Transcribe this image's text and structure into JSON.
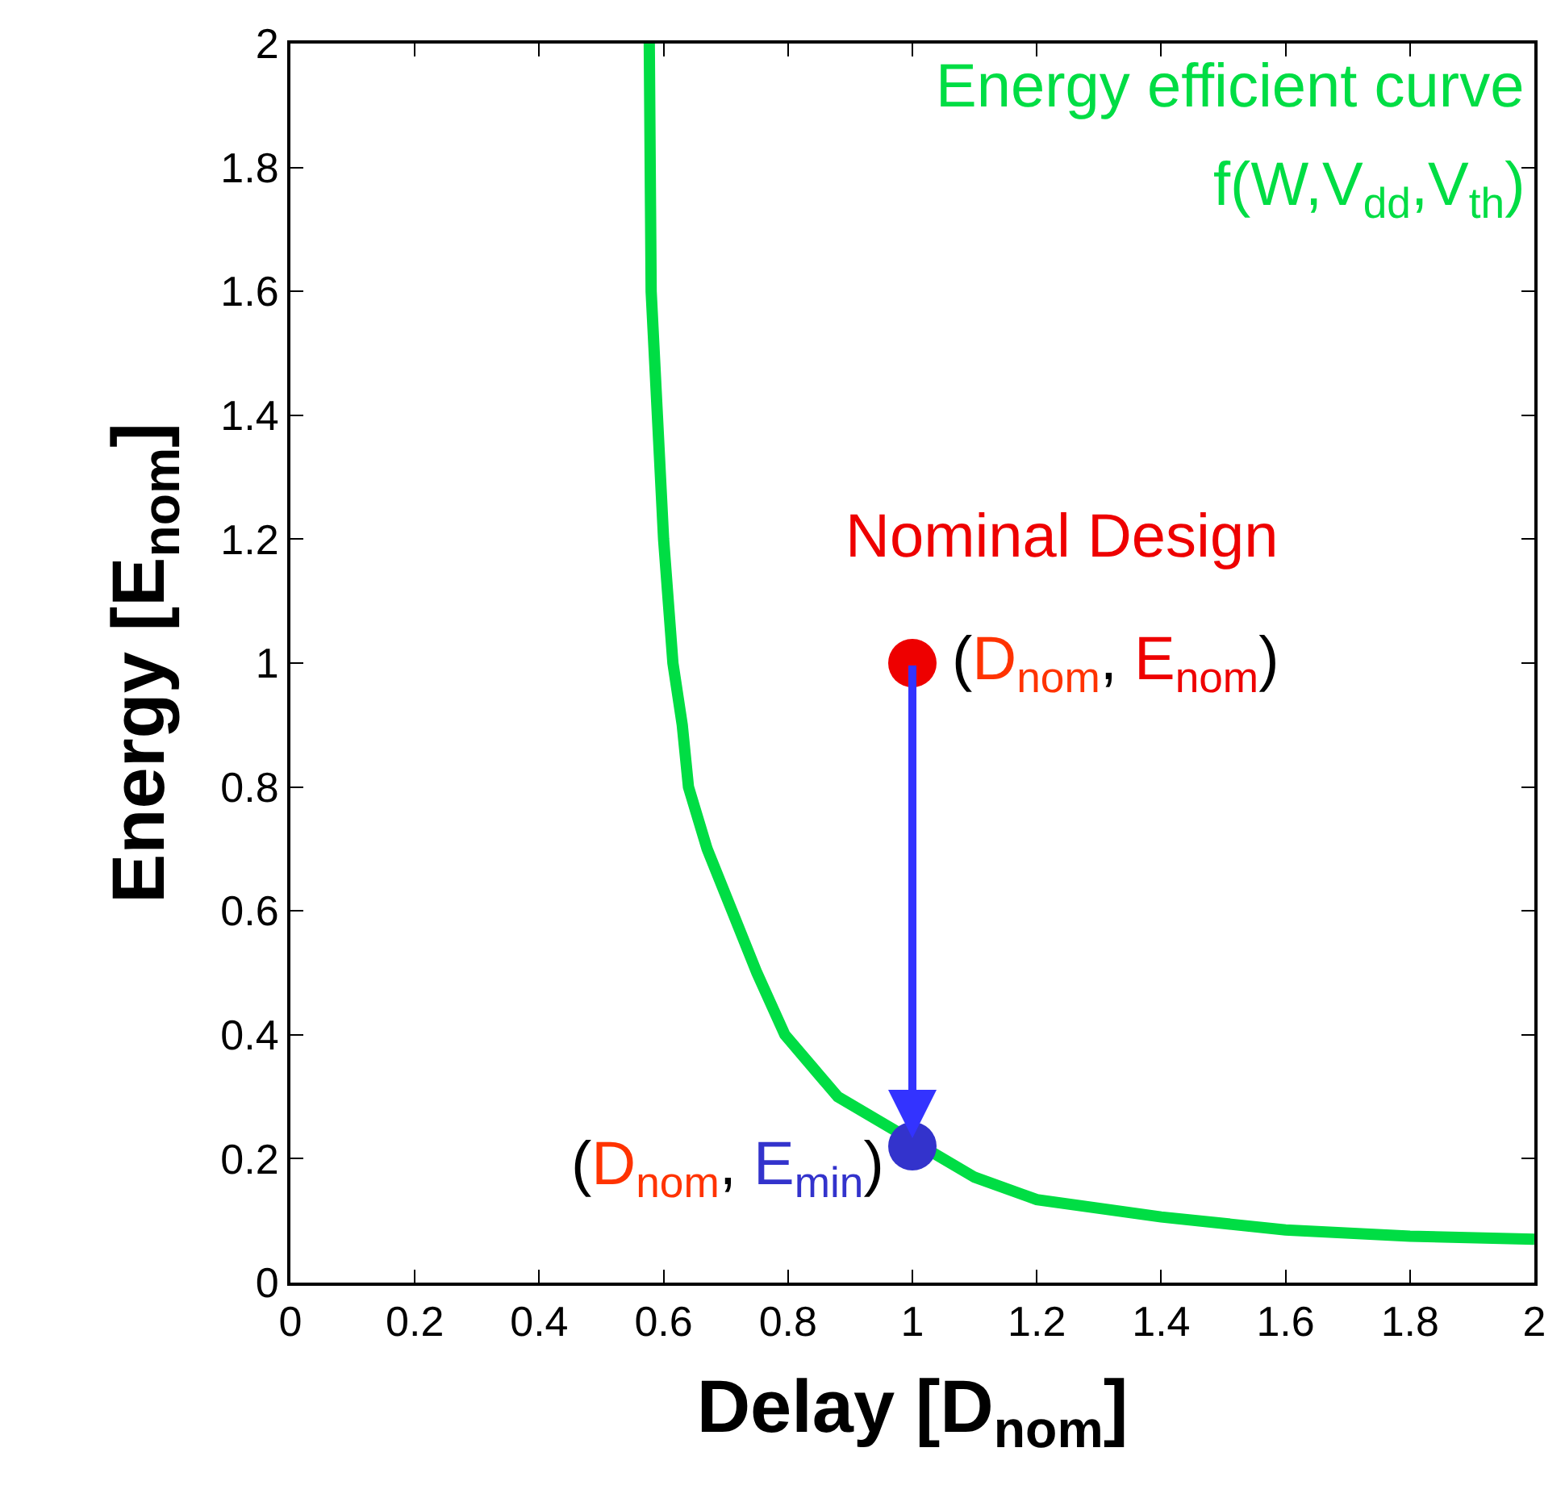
{
  "chart_data": {
    "type": "line",
    "xlabel": "Delay [D$_{nom}$]",
    "ylabel": "Energy [E$_{nom}$]",
    "xlim": [
      0,
      2
    ],
    "ylim": [
      0,
      2
    ],
    "xticks": [
      0,
      0.2,
      0.4,
      0.6,
      0.8,
      1,
      1.2,
      1.4,
      1.6,
      1.8,
      2
    ],
    "yticks": [
      0,
      0.2,
      0.4,
      0.6,
      0.8,
      1,
      1.2,
      1.4,
      1.6,
      1.8,
      2
    ],
    "series": [
      {
        "color": "#00dd44",
        "x": [
          0.577,
          0.58,
          0.59,
          0.6,
          0.615,
          0.63,
          0.64,
          0.67,
          0.71,
          0.75,
          0.795,
          0.88,
          1.1,
          1.2,
          1.4,
          1.6,
          1.8,
          2.0
        ],
        "values": [
          2.0,
          1.6,
          1.4,
          1.2,
          1.0,
          0.9,
          0.8,
          0.7,
          0.6,
          0.5,
          0.4,
          0.3,
          0.17,
          0.134,
          0.106,
          0.085,
          0.075,
          0.07
        ]
      },
      {
        "type": "scatter",
        "color": "#ee0000",
        "x": [
          1
        ],
        "values": [
          1
        ]
      },
      {
        "type": "scatter",
        "color": "#3333cc",
        "x": [
          1
        ],
        "values": [
          0.22
        ]
      }
    ],
    "annotations": [
      "Energy efficient curve",
      "f(W,V$_{dd}$,V$_{th}$)",
      "Nominal Design",
      {
        "text": "(D$_{nom}$, E$_{nom}$)",
        "x": 1.0,
        "y": 1.0
      },
      {
        "text": "(D$_{nom}$, E$_{min}$)",
        "x": 1.0,
        "y": 0.22
      }
    ]
  }
}
